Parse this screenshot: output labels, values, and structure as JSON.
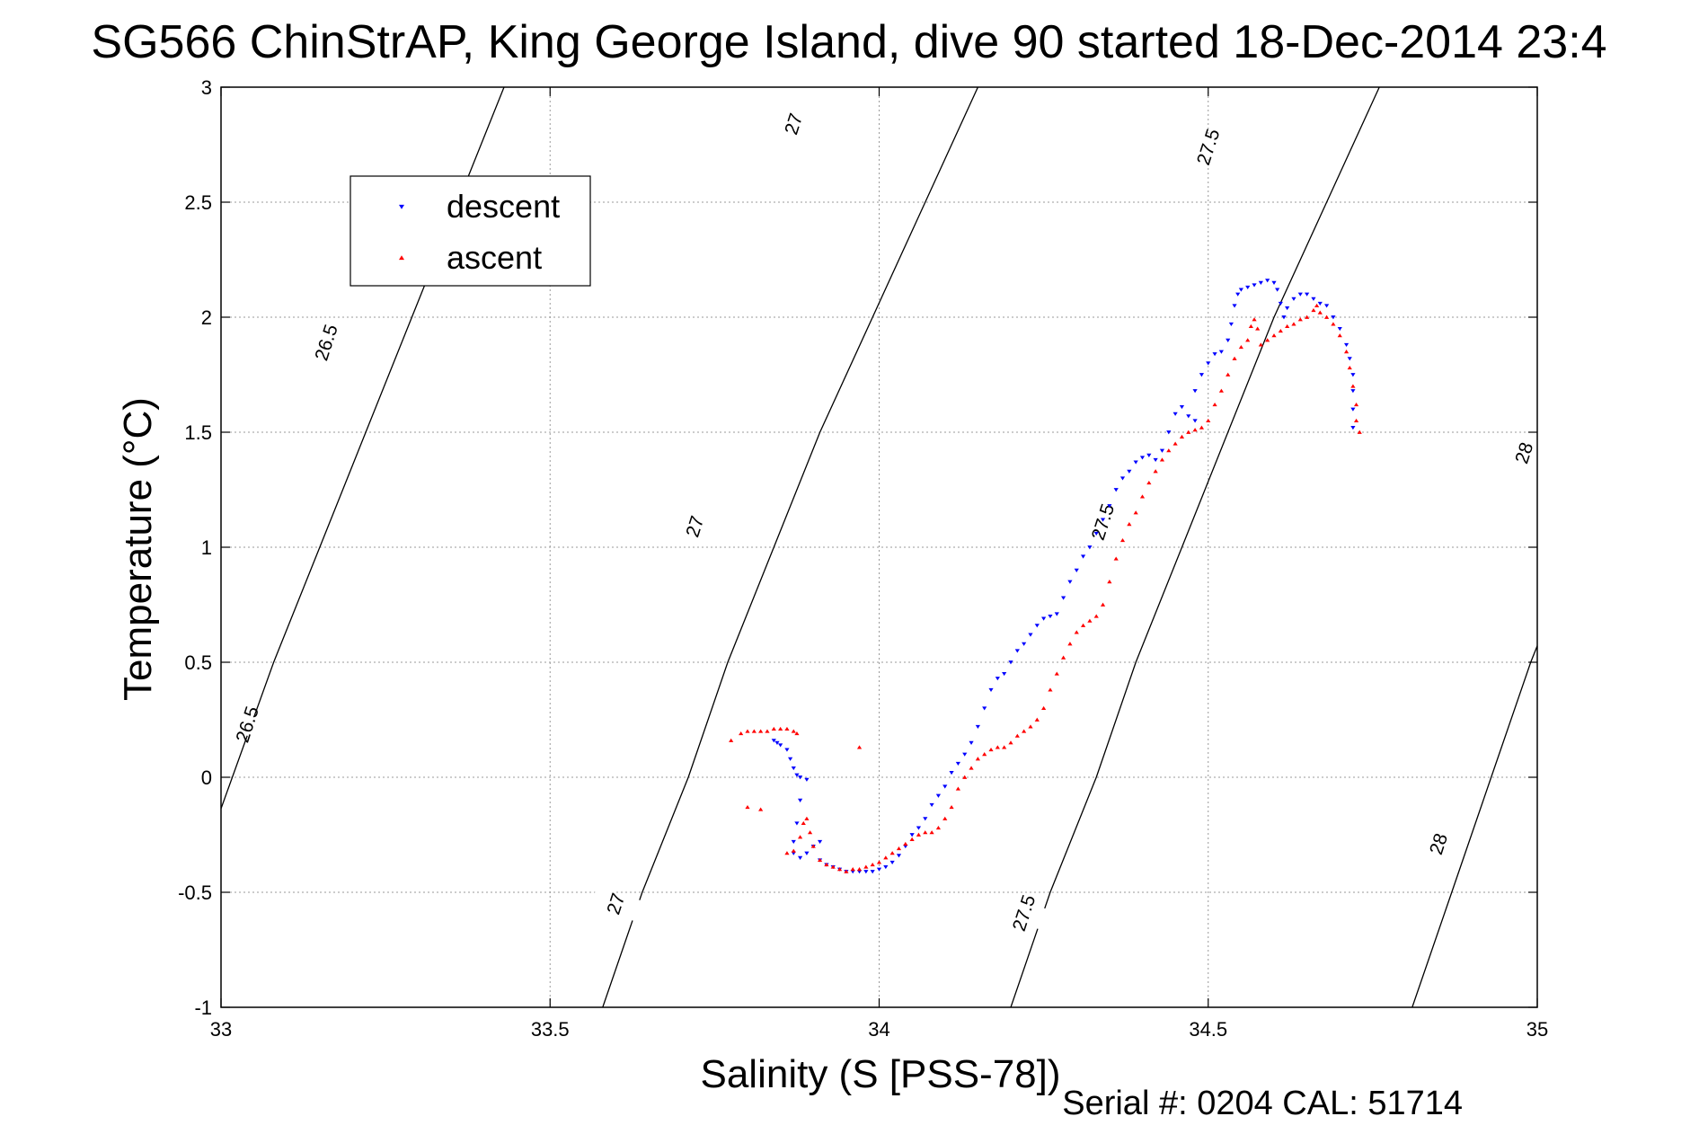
{
  "chart_data": {
    "type": "scatter",
    "title": "SG566 ChinStrAP, King George Island, dive 90 started 18-Dec-2014 23:4",
    "xlabel": "Salinity (S [PSS-78])",
    "ylabel": "Temperature (°C)",
    "xlim": [
      33,
      35
    ],
    "ylim": [
      -1,
      3
    ],
    "xticks": [
      "33",
      "33.5",
      "34",
      "34.5",
      "35"
    ],
    "yticks": [
      "-1",
      "-0.5",
      "0",
      "0.5",
      "1",
      "1.5",
      "2",
      "2.5",
      "3"
    ],
    "grid": true,
    "legend_position": "top-left",
    "footer": "Serial #: 0204  CAL: 51714",
    "density_contours": [
      {
        "label": "26.5",
        "points": [
          [
            32.997,
            -0.16
          ],
          [
            33.08,
            0.5
          ],
          [
            33.15,
            1.0
          ],
          [
            33.22,
            1.5
          ],
          [
            33.29,
            2.0
          ],
          [
            33.36,
            2.5
          ],
          [
            33.43,
            3.0
          ]
        ]
      },
      {
        "label": "27",
        "points": [
          [
            33.58,
            -1.0
          ],
          [
            33.64,
            -0.5
          ],
          [
            33.71,
            0.0
          ],
          [
            33.77,
            0.5
          ],
          [
            33.84,
            1.0
          ],
          [
            33.91,
            1.5
          ],
          [
            33.99,
            2.0
          ],
          [
            34.07,
            2.5
          ],
          [
            34.15,
            3.0
          ]
        ]
      },
      {
        "label": "27.5",
        "points": [
          [
            34.2,
            -1.0
          ],
          [
            34.26,
            -0.5
          ],
          [
            34.33,
            0.0
          ],
          [
            34.39,
            0.5
          ],
          [
            34.46,
            1.0
          ],
          [
            34.53,
            1.5
          ],
          [
            34.6,
            2.0
          ],
          [
            34.68,
            2.5
          ],
          [
            34.76,
            3.0
          ]
        ]
      },
      {
        "label": "28",
        "points": [
          [
            34.81,
            -1.0
          ],
          [
            34.87,
            -0.5
          ],
          [
            34.93,
            0.0
          ],
          [
            34.99,
            0.5
          ],
          [
            35.06,
            1.0
          ],
          [
            35.13,
            1.5
          ]
        ]
      }
    ],
    "contour_labels": [
      {
        "text": "26.5",
        "x": 33.04,
        "y": 0.23
      },
      {
        "text": "26.5",
        "x": 33.16,
        "y": 1.89
      },
      {
        "text": "27",
        "x": 33.6,
        "y": -0.55
      },
      {
        "text": "27",
        "x": 33.72,
        "y": 1.09
      },
      {
        "text": "27",
        "x": 33.87,
        "y": 2.84
      },
      {
        "text": "27.5",
        "x": 34.22,
        "y": -0.59
      },
      {
        "text": "27.5",
        "x": 34.34,
        "y": 1.11
      },
      {
        "text": "27.5",
        "x": 34.5,
        "y": 2.74
      },
      {
        "text": "28",
        "x": 34.85,
        "y": -0.29
      },
      {
        "text": "28",
        "x": 34.98,
        "y": 1.41
      }
    ],
    "series": [
      {
        "name": "descent",
        "color": "#0000ff",
        "marker": "triangle-down",
        "points": [
          [
            33.84,
            0.16
          ],
          [
            33.845,
            0.15
          ],
          [
            33.85,
            0.14
          ],
          [
            33.86,
            0.12
          ],
          [
            33.865,
            0.08
          ],
          [
            33.87,
            0.04
          ],
          [
            33.875,
            0.01
          ],
          [
            33.88,
            0.0
          ],
          [
            33.89,
            -0.01
          ],
          [
            33.88,
            -0.1
          ],
          [
            33.875,
            -0.2
          ],
          [
            33.87,
            -0.28
          ],
          [
            33.87,
            -0.33
          ],
          [
            33.88,
            -0.35
          ],
          [
            33.89,
            -0.33
          ],
          [
            33.9,
            -0.3
          ],
          [
            33.91,
            -0.28
          ],
          [
            33.91,
            -0.36
          ],
          [
            33.92,
            -0.38
          ],
          [
            33.93,
            -0.39
          ],
          [
            33.94,
            -0.4
          ],
          [
            33.95,
            -0.41
          ],
          [
            33.96,
            -0.41
          ],
          [
            33.97,
            -0.41
          ],
          [
            33.98,
            -0.41
          ],
          [
            33.99,
            -0.41
          ],
          [
            34.0,
            -0.4
          ],
          [
            34.01,
            -0.39
          ],
          [
            34.02,
            -0.37
          ],
          [
            34.03,
            -0.34
          ],
          [
            34.04,
            -0.3
          ],
          [
            34.05,
            -0.25
          ],
          [
            34.06,
            -0.22
          ],
          [
            34.07,
            -0.18
          ],
          [
            34.08,
            -0.12
          ],
          [
            34.09,
            -0.08
          ],
          [
            34.1,
            -0.04
          ],
          [
            34.11,
            0.02
          ],
          [
            34.12,
            0.06
          ],
          [
            34.13,
            0.1
          ],
          [
            34.14,
            0.15
          ],
          [
            34.15,
            0.22
          ],
          [
            34.16,
            0.3
          ],
          [
            34.17,
            0.38
          ],
          [
            34.18,
            0.43
          ],
          [
            34.19,
            0.45
          ],
          [
            34.2,
            0.5
          ],
          [
            34.21,
            0.55
          ],
          [
            34.22,
            0.58
          ],
          [
            34.23,
            0.62
          ],
          [
            34.24,
            0.66
          ],
          [
            34.25,
            0.69
          ],
          [
            34.26,
            0.7
          ],
          [
            34.27,
            0.71
          ],
          [
            34.28,
            0.78
          ],
          [
            34.29,
            0.85
          ],
          [
            34.3,
            0.9
          ],
          [
            34.31,
            0.96
          ],
          [
            34.32,
            1.0
          ],
          [
            34.33,
            1.06
          ],
          [
            34.34,
            1.12
          ],
          [
            34.35,
            1.18
          ],
          [
            34.36,
            1.25
          ],
          [
            34.37,
            1.3
          ],
          [
            34.38,
            1.33
          ],
          [
            34.39,
            1.37
          ],
          [
            34.4,
            1.39
          ],
          [
            34.41,
            1.4
          ],
          [
            34.42,
            1.38
          ],
          [
            34.43,
            1.42
          ],
          [
            34.44,
            1.5
          ],
          [
            34.45,
            1.58
          ],
          [
            34.46,
            1.61
          ],
          [
            34.47,
            1.57
          ],
          [
            34.48,
            1.55
          ],
          [
            34.48,
            1.68
          ],
          [
            34.49,
            1.75
          ],
          [
            34.5,
            1.8
          ],
          [
            34.51,
            1.84
          ],
          [
            34.52,
            1.85
          ],
          [
            34.53,
            1.9
          ],
          [
            34.535,
            1.97
          ],
          [
            34.54,
            2.05
          ],
          [
            34.545,
            2.1
          ],
          [
            34.55,
            2.12
          ],
          [
            34.56,
            2.13
          ],
          [
            34.57,
            2.14
          ],
          [
            34.58,
            2.15
          ],
          [
            34.59,
            2.16
          ],
          [
            34.6,
            2.15
          ],
          [
            34.605,
            2.12
          ],
          [
            34.61,
            2.06
          ],
          [
            34.615,
            2.0
          ],
          [
            34.62,
            2.04
          ],
          [
            34.63,
            2.08
          ],
          [
            34.64,
            2.1
          ],
          [
            34.65,
            2.1
          ],
          [
            34.66,
            2.08
          ],
          [
            34.67,
            2.06
          ],
          [
            34.68,
            2.05
          ],
          [
            34.69,
            2.0
          ],
          [
            34.7,
            1.95
          ],
          [
            34.71,
            1.88
          ],
          [
            34.715,
            1.82
          ],
          [
            34.72,
            1.75
          ],
          [
            34.72,
            1.68
          ],
          [
            34.72,
            1.6
          ],
          [
            34.72,
            1.52
          ]
        ]
      },
      {
        "name": "ascent",
        "color": "#ff0000",
        "marker": "triangle-up",
        "points": [
          [
            33.775,
            0.16
          ],
          [
            33.79,
            0.19
          ],
          [
            33.8,
            0.2
          ],
          [
            33.81,
            0.2
          ],
          [
            33.82,
            0.2
          ],
          [
            33.83,
            0.2
          ],
          [
            33.84,
            0.21
          ],
          [
            33.85,
            0.21
          ],
          [
            33.86,
            0.21
          ],
          [
            33.87,
            0.2
          ],
          [
            33.875,
            0.19
          ],
          [
            33.97,
            0.13
          ],
          [
            33.8,
            -0.13
          ],
          [
            33.82,
            -0.14
          ],
          [
            33.86,
            -0.33
          ],
          [
            33.87,
            -0.32
          ],
          [
            33.88,
            -0.26
          ],
          [
            33.885,
            -0.2
          ],
          [
            33.89,
            -0.18
          ],
          [
            33.895,
            -0.24
          ],
          [
            33.9,
            -0.3
          ],
          [
            33.91,
            -0.36
          ],
          [
            33.92,
            -0.38
          ],
          [
            33.93,
            -0.39
          ],
          [
            33.94,
            -0.4
          ],
          [
            33.95,
            -0.41
          ],
          [
            33.96,
            -0.4
          ],
          [
            33.97,
            -0.4
          ],
          [
            33.98,
            -0.39
          ],
          [
            33.99,
            -0.38
          ],
          [
            34.0,
            -0.37
          ],
          [
            34.01,
            -0.35
          ],
          [
            34.02,
            -0.33
          ],
          [
            34.03,
            -0.31
          ],
          [
            34.04,
            -0.29
          ],
          [
            34.05,
            -0.27
          ],
          [
            34.06,
            -0.25
          ],
          [
            34.07,
            -0.24
          ],
          [
            34.08,
            -0.24
          ],
          [
            34.09,
            -0.22
          ],
          [
            34.1,
            -0.18
          ],
          [
            34.11,
            -0.13
          ],
          [
            34.12,
            -0.05
          ],
          [
            34.13,
            0.0
          ],
          [
            34.14,
            0.04
          ],
          [
            34.15,
            0.08
          ],
          [
            34.16,
            0.1
          ],
          [
            34.17,
            0.12
          ],
          [
            34.18,
            0.13
          ],
          [
            34.19,
            0.13
          ],
          [
            34.2,
            0.15
          ],
          [
            34.21,
            0.18
          ],
          [
            34.22,
            0.2
          ],
          [
            34.23,
            0.22
          ],
          [
            34.24,
            0.25
          ],
          [
            34.25,
            0.3
          ],
          [
            34.26,
            0.38
          ],
          [
            34.27,
            0.45
          ],
          [
            34.28,
            0.52
          ],
          [
            34.29,
            0.58
          ],
          [
            34.3,
            0.63
          ],
          [
            34.31,
            0.66
          ],
          [
            34.32,
            0.68
          ],
          [
            34.33,
            0.7
          ],
          [
            34.34,
            0.75
          ],
          [
            34.35,
            0.85
          ],
          [
            34.36,
            0.95
          ],
          [
            34.37,
            1.03
          ],
          [
            34.38,
            1.1
          ],
          [
            34.39,
            1.15
          ],
          [
            34.4,
            1.22
          ],
          [
            34.41,
            1.28
          ],
          [
            34.42,
            1.33
          ],
          [
            34.43,
            1.38
          ],
          [
            34.44,
            1.42
          ],
          [
            34.45,
            1.45
          ],
          [
            34.46,
            1.48
          ],
          [
            34.47,
            1.5
          ],
          [
            34.48,
            1.51
          ],
          [
            34.49,
            1.52
          ],
          [
            34.5,
            1.55
          ],
          [
            34.51,
            1.62
          ],
          [
            34.52,
            1.68
          ],
          [
            34.53,
            1.75
          ],
          [
            34.54,
            1.82
          ],
          [
            34.55,
            1.87
          ],
          [
            34.56,
            1.9
          ],
          [
            34.565,
            1.96
          ],
          [
            34.57,
            1.99
          ],
          [
            34.575,
            1.95
          ],
          [
            34.58,
            1.88
          ],
          [
            34.59,
            1.9
          ],
          [
            34.6,
            1.92
          ],
          [
            34.61,
            1.94
          ],
          [
            34.62,
            1.96
          ],
          [
            34.63,
            1.97
          ],
          [
            34.64,
            1.99
          ],
          [
            34.65,
            2.0
          ],
          [
            34.66,
            2.03
          ],
          [
            34.665,
            2.05
          ],
          [
            34.67,
            2.02
          ],
          [
            34.68,
            2.0
          ],
          [
            34.69,
            1.97
          ],
          [
            34.7,
            1.92
          ],
          [
            34.71,
            1.85
          ],
          [
            34.715,
            1.78
          ],
          [
            34.72,
            1.7
          ],
          [
            34.725,
            1.62
          ],
          [
            34.725,
            1.55
          ],
          [
            34.73,
            1.5
          ]
        ]
      }
    ]
  }
}
